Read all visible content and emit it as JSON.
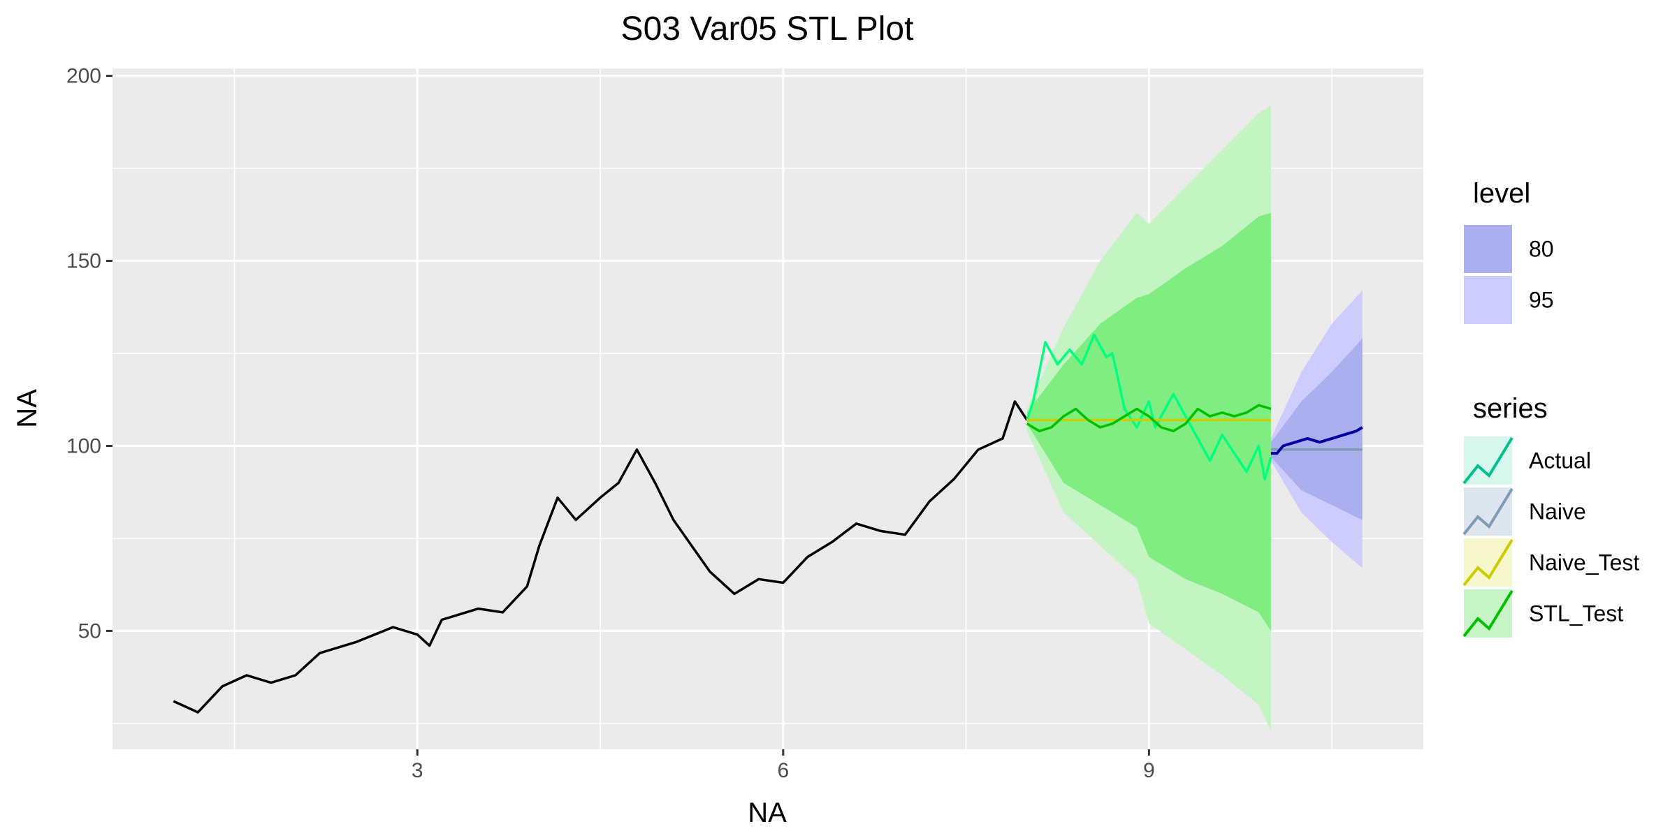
{
  "chart_data": {
    "type": "line",
    "title": "S03 Var05 STL Plot",
    "xlabel": "NA",
    "ylabel": "NA",
    "xlim": [
      0.5,
      11.25
    ],
    "ylim": [
      18,
      202
    ],
    "x_ticks": [
      3,
      6,
      9
    ],
    "x_tick_labels": [
      "3",
      "6",
      "9"
    ],
    "y_ticks": [
      50,
      100,
      150,
      200
    ],
    "y_tick_labels": [
      "50",
      "100",
      "150",
      "200"
    ],
    "grid": true,
    "legend_placement": "right",
    "history": {
      "color": "#000000",
      "points": [
        [
          1.0,
          31
        ],
        [
          1.2,
          28
        ],
        [
          1.4,
          35
        ],
        [
          1.6,
          38
        ],
        [
          1.8,
          36
        ],
        [
          2.0,
          38
        ],
        [
          2.2,
          44
        ],
        [
          2.5,
          47
        ],
        [
          2.8,
          51
        ],
        [
          3.0,
          49
        ],
        [
          3.1,
          46
        ],
        [
          3.2,
          53
        ],
        [
          3.5,
          56
        ],
        [
          3.7,
          55
        ],
        [
          3.9,
          62
        ],
        [
          4.0,
          73
        ],
        [
          4.15,
          86
        ],
        [
          4.3,
          80
        ],
        [
          4.5,
          86
        ],
        [
          4.65,
          90
        ],
        [
          4.8,
          99
        ],
        [
          4.95,
          90
        ],
        [
          5.1,
          80
        ],
        [
          5.25,
          73
        ],
        [
          5.4,
          66
        ],
        [
          5.6,
          60
        ],
        [
          5.8,
          64
        ],
        [
          6.0,
          63
        ],
        [
          6.2,
          70
        ],
        [
          6.4,
          74
        ],
        [
          6.6,
          79
        ],
        [
          6.8,
          77
        ],
        [
          7.0,
          76
        ],
        [
          7.2,
          85
        ],
        [
          7.4,
          91
        ],
        [
          7.6,
          99
        ],
        [
          7.8,
          102
        ],
        [
          7.9,
          112
        ],
        [
          8.0,
          107
        ]
      ]
    },
    "series": [
      {
        "name": "Actual",
        "color": "#00ff7f",
        "points": [
          [
            8.0,
            107
          ],
          [
            8.05,
            112
          ],
          [
            8.15,
            128
          ],
          [
            8.25,
            122
          ],
          [
            8.35,
            126
          ],
          [
            8.45,
            122
          ],
          [
            8.55,
            130
          ],
          [
            8.65,
            124
          ],
          [
            8.7,
            125
          ],
          [
            8.8,
            110
          ],
          [
            8.9,
            105
          ],
          [
            9.0,
            112
          ],
          [
            9.05,
            105
          ],
          [
            9.1,
            108
          ],
          [
            9.2,
            114
          ],
          [
            9.3,
            108
          ],
          [
            9.4,
            102
          ],
          [
            9.5,
            96
          ],
          [
            9.6,
            103
          ],
          [
            9.7,
            98
          ],
          [
            9.8,
            93
          ],
          [
            9.9,
            100
          ],
          [
            9.95,
            91
          ],
          [
            10.0,
            97
          ]
        ]
      },
      {
        "name": "Naive",
        "color": "#7e9cb3",
        "points": [
          [
            10.0,
            99
          ],
          [
            10.75,
            99
          ]
        ]
      },
      {
        "name": "Naive_Test",
        "color": "#cccc00",
        "points": [
          [
            8.0,
            107
          ],
          [
            10.0,
            107
          ]
        ]
      },
      {
        "name": "STL_Test",
        "color": "#00c000",
        "points": [
          [
            8.0,
            106
          ],
          [
            8.1,
            104
          ],
          [
            8.2,
            105
          ],
          [
            8.3,
            108
          ],
          [
            8.4,
            110
          ],
          [
            8.5,
            107
          ],
          [
            8.6,
            105
          ],
          [
            8.7,
            106
          ],
          [
            8.8,
            108
          ],
          [
            8.9,
            110
          ],
          [
            9.0,
            108
          ],
          [
            9.1,
            105
          ],
          [
            9.2,
            104
          ],
          [
            9.3,
            106
          ],
          [
            9.4,
            110
          ],
          [
            9.5,
            108
          ],
          [
            9.6,
            109
          ],
          [
            9.7,
            108
          ],
          [
            9.8,
            109
          ],
          [
            9.9,
            111
          ],
          [
            10.0,
            110
          ]
        ]
      }
    ],
    "forecast_mean": {
      "color": "#0000a0",
      "points": [
        [
          10.0,
          98
        ],
        [
          10.05,
          98
        ],
        [
          10.1,
          100
        ],
        [
          10.2,
          101
        ],
        [
          10.3,
          102
        ],
        [
          10.4,
          101
        ],
        [
          10.5,
          102
        ],
        [
          10.6,
          103
        ],
        [
          10.7,
          104
        ],
        [
          10.75,
          105
        ]
      ]
    },
    "bands": [
      {
        "level": "95",
        "series": "STL_Test",
        "color": "#c2f5c2",
        "x": [
          8.0,
          8.3,
          8.6,
          8.9,
          9.0,
          9.3,
          9.6,
          9.9,
          10.0
        ],
        "lower": [
          104,
          82,
          73,
          64,
          52,
          45,
          38,
          30,
          23
        ],
        "upper": [
          110,
          132,
          150,
          163,
          160,
          170,
          180,
          190,
          192
        ]
      },
      {
        "level": "80",
        "series": "STL_Test",
        "color": "#7fed7f",
        "x": [
          8.0,
          8.3,
          8.6,
          8.9,
          9.0,
          9.3,
          9.6,
          9.9,
          10.0
        ],
        "lower": [
          106,
          90,
          84,
          78,
          70,
          64,
          60,
          55,
          50
        ],
        "upper": [
          109,
          122,
          133,
          140,
          141,
          148,
          154,
          162,
          163
        ]
      },
      {
        "level": "95",
        "series": "Naive",
        "color": "#ccccff",
        "x": [
          10.0,
          10.25,
          10.5,
          10.75
        ],
        "lower": [
          96,
          82,
          74,
          67
        ],
        "upper": [
          102,
          120,
          133,
          142
        ]
      },
      {
        "level": "80",
        "series": "Naive",
        "color": "#aaaff0",
        "x": [
          10.0,
          10.25,
          10.5,
          10.75
        ],
        "lower": [
          97,
          88,
          84,
          80
        ],
        "upper": [
          101,
          112,
          120,
          129
        ]
      }
    ],
    "legend": {
      "level_title": "level",
      "levels": [
        {
          "label": "80",
          "color": "#aaaff0"
        },
        {
          "label": "95",
          "color": "#ccccff"
        }
      ],
      "series_title": "series",
      "series": [
        {
          "label": "Actual",
          "color": "#00c08b",
          "fill": "#d6f7ec"
        },
        {
          "label": "Naive",
          "color": "#7e9cb3",
          "fill": "#dde5ee"
        },
        {
          "label": "Naive_Test",
          "color": "#cccc00",
          "fill": "#f7f7cc"
        },
        {
          "label": "STL_Test",
          "color": "#00c000",
          "fill": "#c8f5c8"
        }
      ]
    }
  }
}
